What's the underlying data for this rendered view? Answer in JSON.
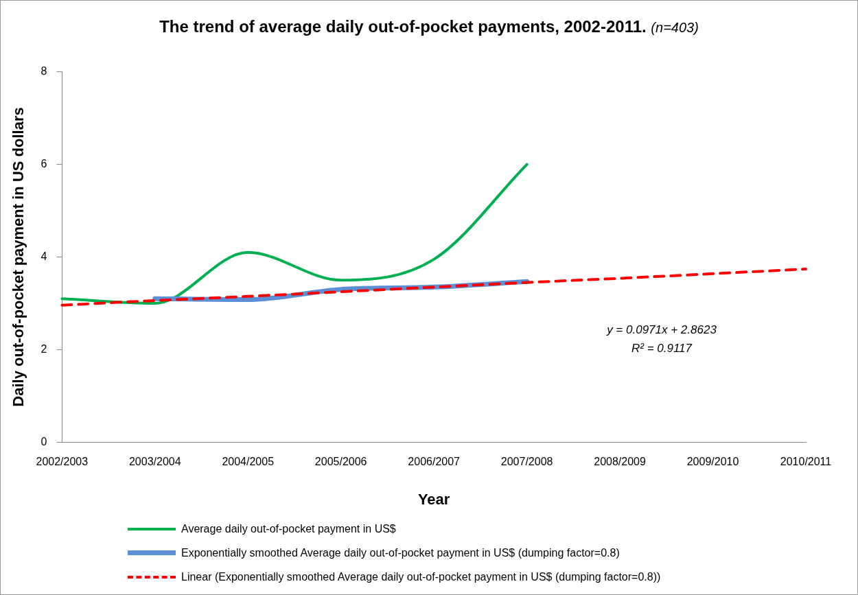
{
  "chart_data": {
    "type": "line",
    "title": "The trend of average daily out-of-pocket payments, 2002-2011.",
    "subtitle": "(n=403)",
    "xlabel": "Year",
    "ylabel": "Daily out-of-pocket payment in US dollars",
    "categories": [
      "2002/2003",
      "2003/2004",
      "2004/2005",
      "2005/2006",
      "2006/2007",
      "2007/2008",
      "2008/2009",
      "2009/2010",
      "2010/2011"
    ],
    "series": [
      {
        "name": "Average daily out-of-pocket payment in US$",
        "color": "#00b050",
        "values": [
          3.1,
          3.0,
          4.1,
          3.5,
          3.95,
          6.0,
          null,
          null,
          null
        ]
      },
      {
        "name": "Exponentially smoothed Average daily out-of-pocket payment in US$ (dumping factor=0.8)",
        "color": "#5b8fd6",
        "values": [
          null,
          3.1,
          3.08,
          3.3,
          3.35,
          3.47,
          null,
          null,
          null
        ]
      },
      {
        "name": "Linear (Exponentially smoothed Average daily out-of-pocket payment in US$ (dumping factor=0.8))",
        "color": "#ff0000",
        "line_style": "dashed",
        "values": [
          2.96,
          3.06,
          3.15,
          3.25,
          3.35,
          3.45,
          3.54,
          3.64,
          3.74
        ]
      }
    ],
    "ylim": [
      0,
      8
    ],
    "yticks": [
      0,
      2,
      4,
      6,
      8
    ],
    "grid": false,
    "legend": "bottom",
    "annotations": [
      "y = 0.0971x + 2.8623",
      "R² = 0.9117"
    ]
  }
}
